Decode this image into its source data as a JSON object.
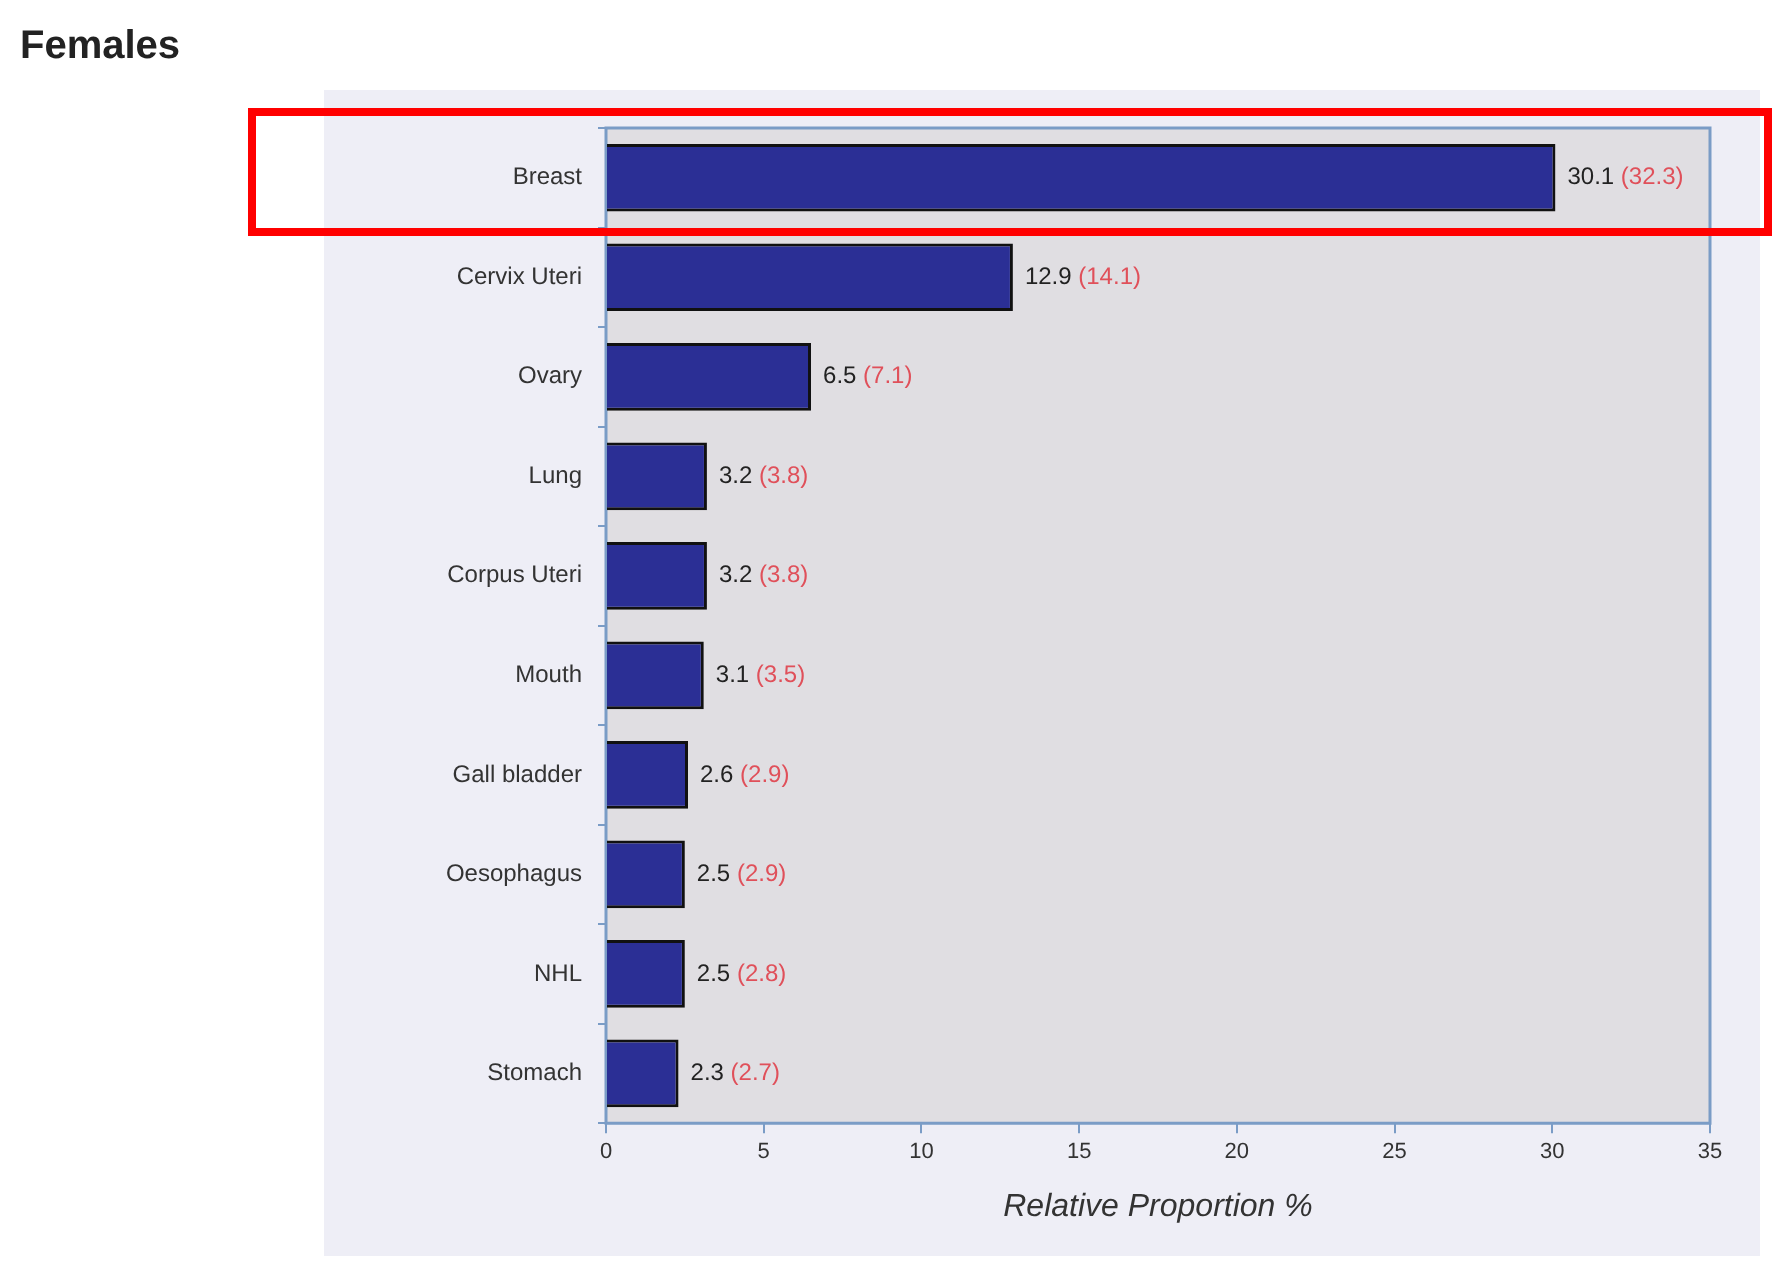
{
  "chart_data": {
    "type": "bar",
    "orientation": "horizontal",
    "title": "Females",
    "xlabel": "Relative Proportion %",
    "categories": [
      "Breast",
      "Cervix Uteri",
      "Ovary",
      "Lung",
      "Corpus Uteri",
      "Mouth",
      "Gall bladder",
      "Oesophagus",
      "NHL",
      "Stomach"
    ],
    "values": [
      30.1,
      12.9,
      6.5,
      3.2,
      3.2,
      3.1,
      2.6,
      2.5,
      2.5,
      2.3
    ],
    "value_labels": [
      "30.1 (32.3)",
      "12.9 (14.1)",
      "6.5 (7.1)",
      "3.2 (3.8)",
      "3.2 (3.8)",
      "3.1 (3.5)",
      "2.6 (2.9)",
      "2.5 (2.9)",
      "2.5 (2.8)",
      "2.3 (2.7)"
    ],
    "color": "#2b2f95",
    "xlim": [
      0,
      35
    ],
    "xticks": [
      0,
      5,
      10,
      15,
      20,
      25,
      30,
      35
    ],
    "legend": false
  }
}
